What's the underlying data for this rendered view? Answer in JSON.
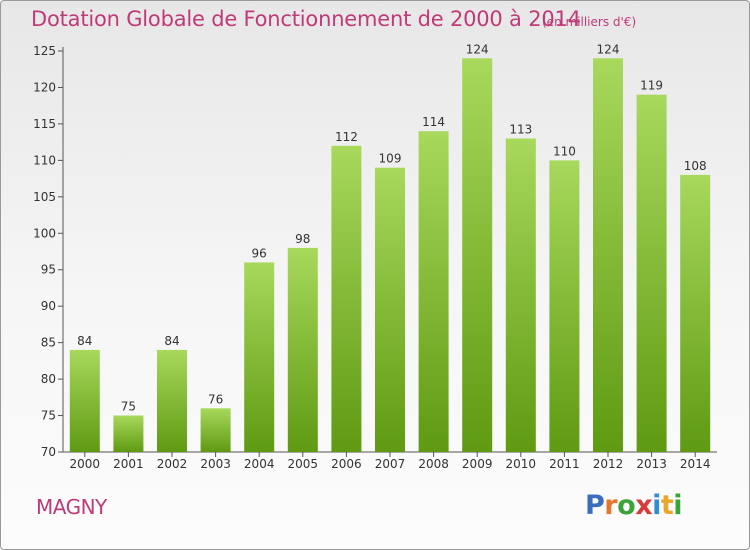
{
  "title": "Dotation Globale de Fonctionnement de 2000 à 2014",
  "subtitle": "(en milliers d'€)",
  "place": "MAGNY",
  "logo": {
    "letters": [
      "P",
      "r",
      "o",
      "x",
      "i",
      "t",
      "i"
    ],
    "colors": [
      "#3a6fbf",
      "#e8772b",
      "#3aa33a",
      "#d93a3a",
      "#2f8fd0",
      "#e8a82b",
      "#3aa33a"
    ]
  },
  "colors": {
    "title": "#c03a78",
    "bar_top": "#a8d85c",
    "bar_bottom": "#5f9a12",
    "axis": "#555555"
  },
  "chart_data": {
    "type": "bar",
    "categories": [
      "2000",
      "2001",
      "2002",
      "2003",
      "2004",
      "2005",
      "2006",
      "2007",
      "2008",
      "2009",
      "2010",
      "2011",
      "2012",
      "2013",
      "2014"
    ],
    "values": [
      84,
      75,
      84,
      76,
      96,
      98,
      112,
      109,
      114,
      124,
      113,
      110,
      124,
      119,
      108
    ],
    "ylim": [
      70,
      125
    ],
    "yticks": [
      70,
      75,
      80,
      85,
      90,
      95,
      100,
      105,
      110,
      115,
      120,
      125
    ],
    "grid": false,
    "title": "Dotation Globale de Fonctionnement de 2000 à 2014",
    "xlabel": "",
    "ylabel": ""
  }
}
